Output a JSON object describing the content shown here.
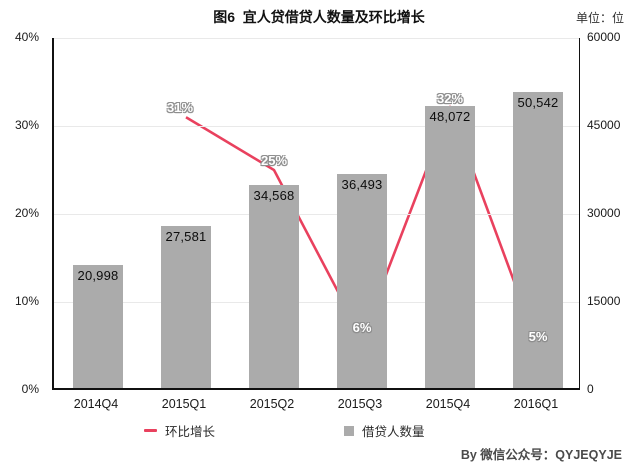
{
  "header": {
    "title": "图6  宜人贷借贷人数量及环比增长",
    "unit_label": "单位：位"
  },
  "chart_data": {
    "type": "bar+line combo",
    "categories": [
      "2014Q4",
      "2015Q1",
      "2015Q2",
      "2015Q3",
      "2015Q4",
      "2016Q1"
    ],
    "series": [
      {
        "name": "借贷人数量",
        "type": "bar",
        "axis": "right",
        "values": [
          20998,
          27581,
          34568,
          36493,
          48072,
          50542
        ],
        "labels": [
          "20,998",
          "27,581",
          "34,568",
          "36,493",
          "48,072",
          "50,542"
        ],
        "color": "#ababab"
      },
      {
        "name": "环比增长",
        "type": "line",
        "axis": "left",
        "values": [
          null,
          31,
          25,
          6,
          32,
          5
        ],
        "labels": [
          "",
          "31%",
          "25%",
          "6%",
          "32%",
          "5%"
        ],
        "color": "#e9415e"
      }
    ],
    "left_axis": {
      "min": 0,
      "max": 40,
      "tick_values": [
        40,
        30,
        20,
        10,
        0
      ],
      "tick_labels": [
        "40%",
        "30%",
        "20%",
        "10%",
        "0%"
      ]
    },
    "right_axis": {
      "min": 0,
      "max": 60000,
      "tick_values": [
        60000,
        45000,
        30000,
        15000,
        0
      ],
      "tick_labels": [
        "60000",
        "45000",
        "30000",
        "15000",
        "0"
      ]
    },
    "grid": true,
    "legend_position": "bottom"
  },
  "legend": {
    "items": [
      {
        "label": "环比增长",
        "marker": "line",
        "color": "#e9415e"
      },
      {
        "label": "借贷人数量",
        "marker": "square",
        "color": "#ababab"
      }
    ]
  },
  "footer": {
    "credit": "By 微信公众号：QYJEQYJE"
  }
}
